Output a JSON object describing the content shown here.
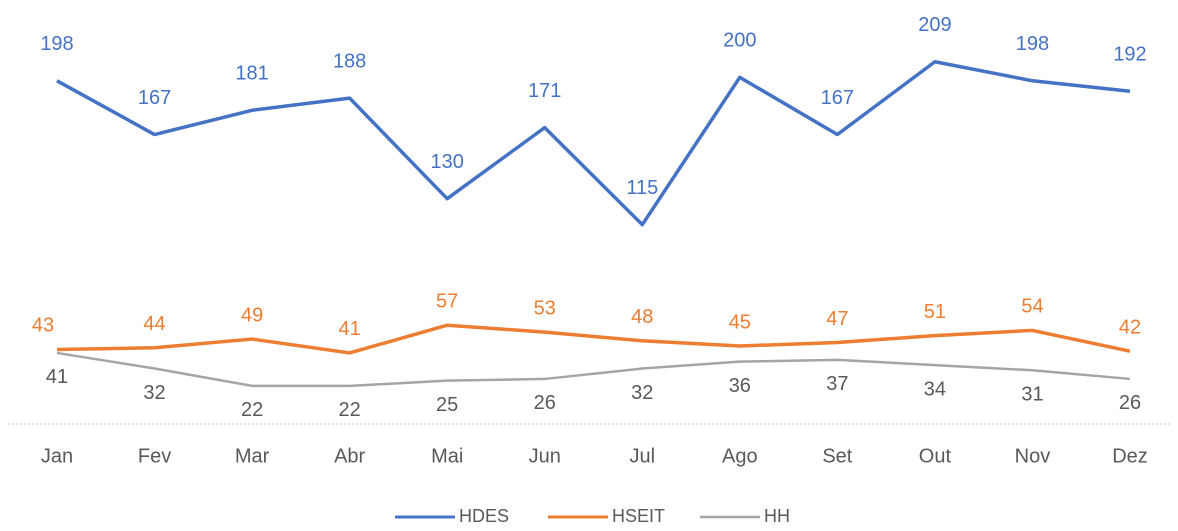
{
  "chart_data": {
    "type": "line",
    "categories": [
      "Jan",
      "Fev",
      "Mar",
      "Abr",
      "Mai",
      "Jun",
      "Jul",
      "Ago",
      "Set",
      "Out",
      "Nov",
      "Dez"
    ],
    "series": [
      {
        "name": "HDES",
        "color": "#4472c4",
        "values": [
          198,
          167,
          181,
          188,
          130,
          171,
          115,
          200,
          167,
          209,
          198,
          192
        ]
      },
      {
        "name": "HSEIT",
        "color": "#ed7d31",
        "values": [
          43,
          44,
          49,
          41,
          57,
          53,
          48,
          45,
          47,
          51,
          54,
          42
        ]
      },
      {
        "name": "HH",
        "color": "#a5a5a5",
        "values": [
          41,
          32,
          22,
          22,
          25,
          26,
          32,
          36,
          37,
          34,
          31,
          26
        ]
      }
    ],
    "ylim": [
      0,
      240
    ],
    "grid": false
  }
}
